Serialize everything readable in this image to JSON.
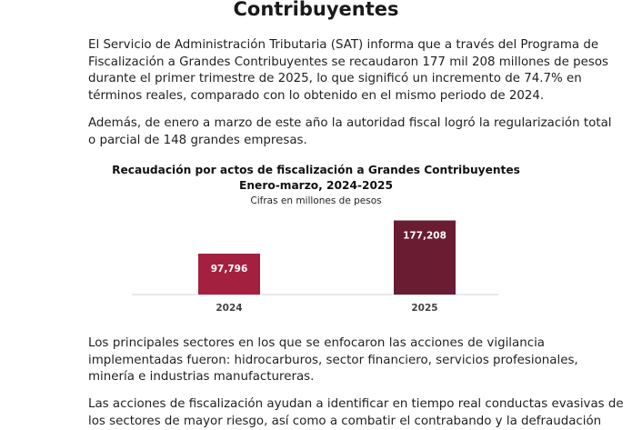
{
  "document": {
    "title": "Contribuyentes",
    "paragraphs": [
      {
        "lines": [
          "El Servicio de Administración Tributaria (SAT) informa que a través del Programa de",
          "Fiscalización a Grandes Contribuyentes se recaudaron 177 mil 208 millones de pesos",
          "durante el primer trimestre de 2025, lo que significó un incremento de 74.7% en",
          "términos reales, comparado con lo obtenido en el mismo periodo de 2024."
        ]
      },
      {
        "lines": [
          "Además, de enero a marzo de este año la autoridad fiscal logró la regularización total",
          "o parcial de 148 grandes empresas."
        ]
      },
      {
        "lines": [
          "Los principales sectores en los que se enfocaron las acciones de vigilancia",
          "implementadas fueron: hidrocarburos, sector financiero, servicios profesionales,",
          "minería e industrias manufactureras."
        ]
      },
      {
        "lines": [
          "Las acciones de fiscalización ayudan a identificar en tiempo real conductas evasivas de",
          "los sectores de mayor riesgo, así como a combatir el contrabando y la defraudación"
        ]
      }
    ]
  },
  "chart_data": {
    "type": "bar",
    "title": "Recaudación por actos de fiscalización a Grandes Contribuyentes",
    "subtitle": "Enero-marzo, 2024-2025",
    "note": "Cifras en millones de pesos",
    "categories": [
      "2024",
      "2025"
    ],
    "values": [
      97796,
      177208
    ],
    "value_labels": [
      "97,796",
      "177,208"
    ],
    "ylim": [
      0,
      200000
    ],
    "grid": false,
    "legend": "none",
    "colors": [
      "#a3213f",
      "#691c32"
    ]
  }
}
